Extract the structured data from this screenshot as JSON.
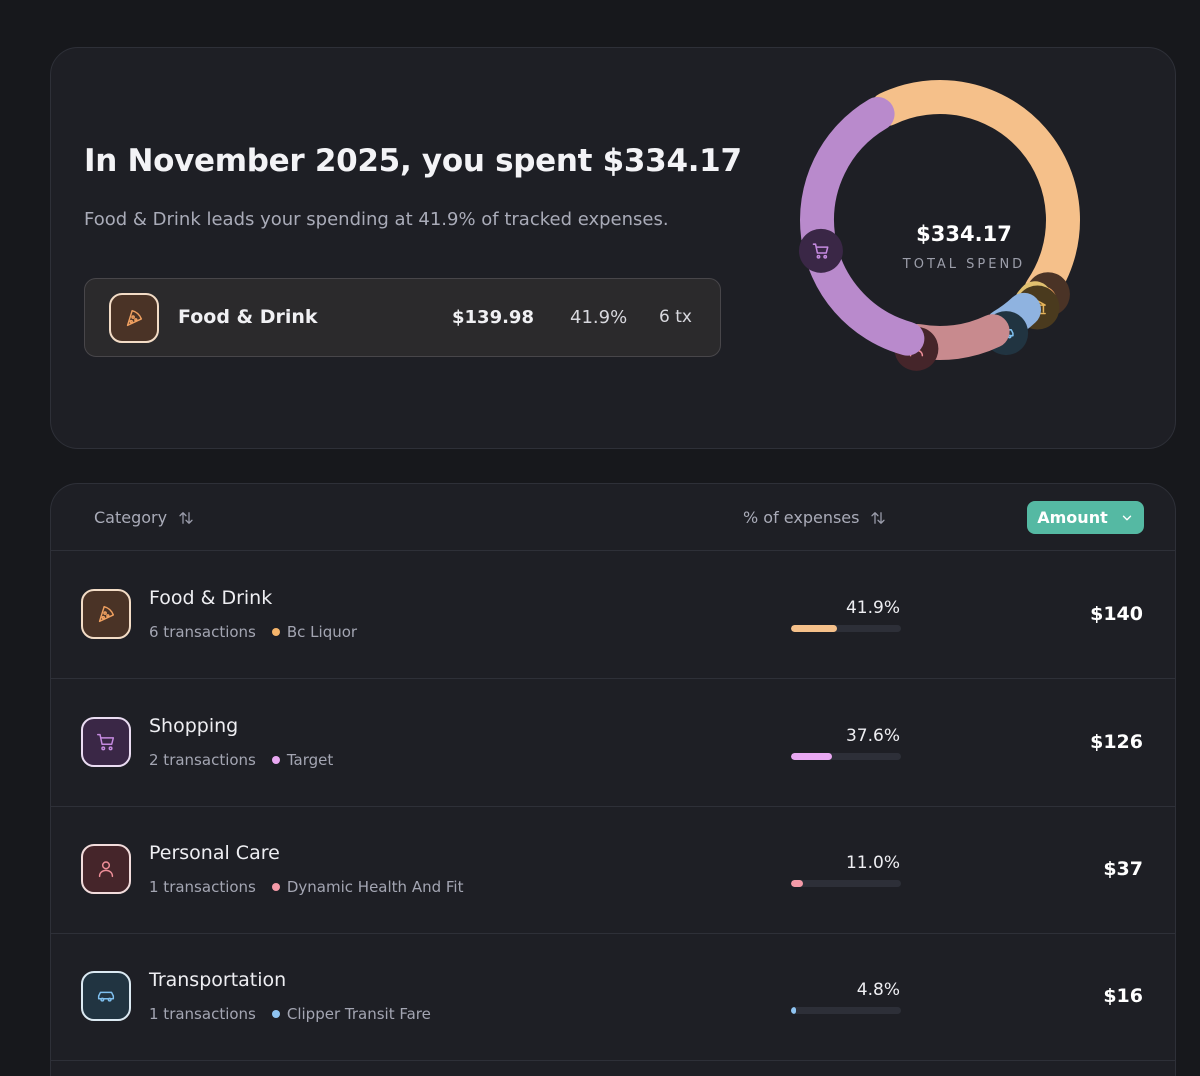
{
  "summary": {
    "headline": "In November 2025, you spent $334.17",
    "subline": "Food & Drink leads your spending at 41.9% of tracked expenses.",
    "leader": {
      "name": "Food & Drink",
      "amount": "$139.98",
      "percent": "41.9%",
      "tx": "6 tx",
      "icon": "pizza-icon"
    },
    "donut": {
      "total": "$334.17",
      "caption": "TOTAL SPEND",
      "segments": [
        {
          "category": "Food & Drink",
          "share": 0.419,
          "color": "#f5c08a",
          "icon": "pizza-icon"
        },
        {
          "category": "Bank / Fees",
          "share": 0.02,
          "color": "#e0c070",
          "icon": "bank-icon"
        },
        {
          "category": "Transportation",
          "share": 0.048,
          "color": "#8fb3e0",
          "icon": "car-icon"
        },
        {
          "category": "Personal Care",
          "share": 0.11,
          "color": "#c88a8e",
          "icon": "person-icon"
        },
        {
          "category": "Shopping",
          "share": 0.376,
          "color": "#b98acc",
          "icon": "cart-icon"
        }
      ]
    }
  },
  "table": {
    "header": {
      "category": "Category",
      "percent": "% of expenses",
      "amount": "Amount"
    },
    "rows": [
      {
        "name": "Food & Drink",
        "transactions": "6 transactions",
        "merchant": "Bc Liquor",
        "percent": "41.9%",
        "fill": 0.419,
        "amount": "$140",
        "color": "#f5c08a",
        "icon": "pizza-icon"
      },
      {
        "name": "Shopping",
        "transactions": "2 transactions",
        "merchant": "Target",
        "percent": "37.6%",
        "fill": 0.376,
        "amount": "$126",
        "color": "#e9a8f2",
        "icon": "cart-icon"
      },
      {
        "name": "Personal Care",
        "transactions": "1 transactions",
        "merchant": "Dynamic Health And Fit",
        "percent": "11.0%",
        "fill": 0.11,
        "amount": "$37",
        "color": "#f49aa8",
        "icon": "person-icon"
      },
      {
        "name": "Transportation",
        "transactions": "1 transactions",
        "merchant": "Clipper Transit Fare",
        "percent": "4.8%",
        "fill": 0.048,
        "amount": "$16",
        "color": "#8fc4f2",
        "icon": "car-icon"
      }
    ]
  }
}
